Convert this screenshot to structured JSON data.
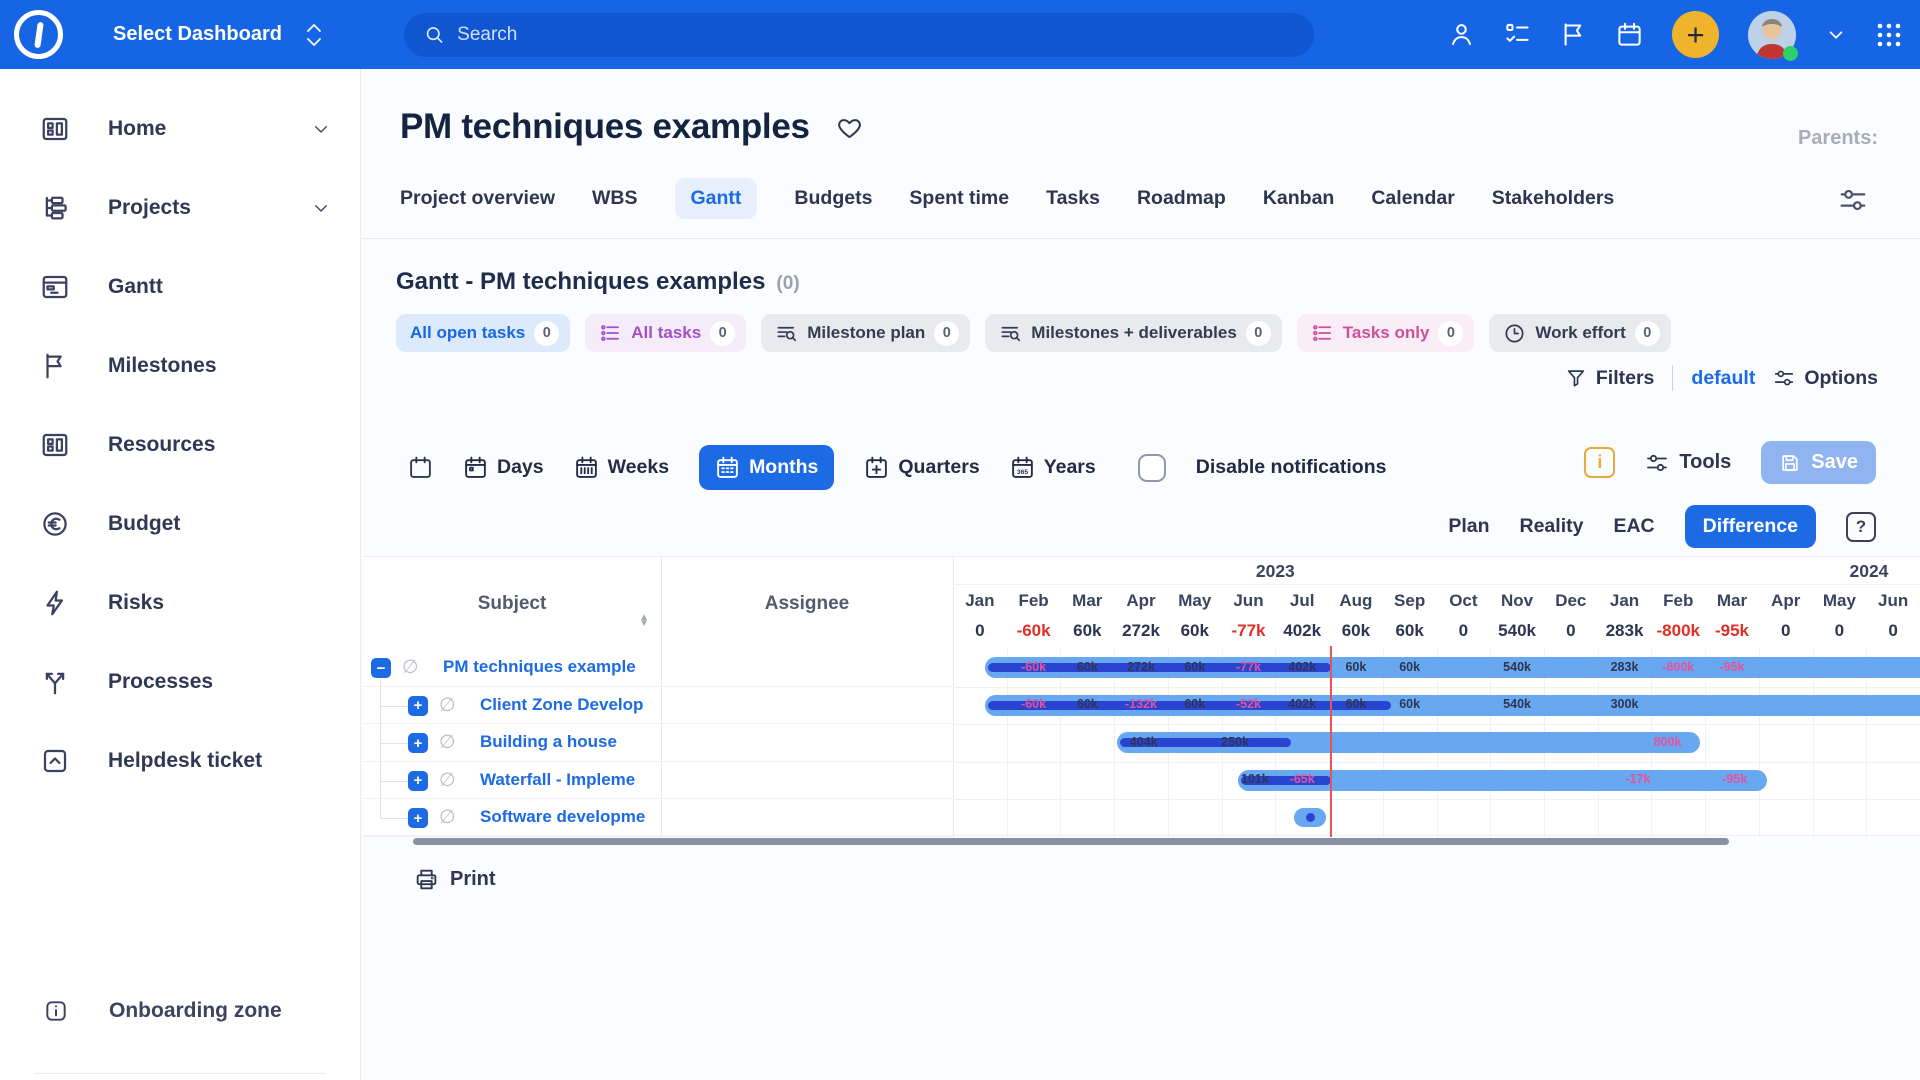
{
  "topbar": {
    "brand": "Select Dashboard",
    "search_placeholder": "Search",
    "icons": [
      "person-icon",
      "checklist-icon",
      "flag-icon",
      "calendar-icon",
      "plus-button",
      "avatar",
      "chevron-down-icon",
      "apps-grid-icon"
    ]
  },
  "sidebar": {
    "items": [
      {
        "label": "Home",
        "icon": "dashboard",
        "chevron": true
      },
      {
        "label": "Projects",
        "icon": "hierarchy",
        "chevron": true
      },
      {
        "label": "Gantt",
        "icon": "gantt"
      },
      {
        "label": "Milestones",
        "icon": "flag"
      },
      {
        "label": "Resources",
        "icon": "dashboard"
      },
      {
        "label": "Budget",
        "icon": "euro"
      },
      {
        "label": "Risks",
        "icon": "bolt"
      },
      {
        "label": "Processes",
        "icon": "branch"
      },
      {
        "label": "Helpdesk ticket",
        "icon": "inbox-up"
      }
    ],
    "onboarding_label": "Onboarding zone"
  },
  "header": {
    "title": "PM techniques examples",
    "parents_label": "Parents:",
    "tabs": [
      {
        "label": "Project overview"
      },
      {
        "label": "WBS"
      },
      {
        "label": "Gantt",
        "active": true
      },
      {
        "label": "Budgets"
      },
      {
        "label": "Spent time"
      },
      {
        "label": "Tasks"
      },
      {
        "label": "Roadmap"
      },
      {
        "label": "Kanban"
      },
      {
        "label": "Calendar"
      },
      {
        "label": "Stakeholders"
      }
    ]
  },
  "gantt": {
    "section_title": "Gantt - PM techniques examples",
    "section_count": "(0)",
    "chips": [
      {
        "label": "All open tasks",
        "count": "0",
        "variant": "blue",
        "icon": "none"
      },
      {
        "label": "All tasks",
        "count": "0",
        "variant": "purple",
        "icon": "list"
      },
      {
        "label": "Milestone plan",
        "count": "0",
        "variant": "gray",
        "icon": "list-search"
      },
      {
        "label": "Milestones + deliverables",
        "count": "0",
        "variant": "gray",
        "icon": "list-search"
      },
      {
        "label": "Tasks only",
        "count": "0",
        "variant": "pink",
        "icon": "list"
      },
      {
        "label": "Work effort",
        "count": "0",
        "variant": "gray",
        "icon": "clock"
      }
    ],
    "filters_label": "Filters",
    "filters_default": "default",
    "options_label": "Options",
    "scale_buttons": [
      {
        "label": "Days",
        "icon": "cal-day"
      },
      {
        "label": "Weeks",
        "icon": "cal-week"
      },
      {
        "label": "Months",
        "icon": "cal-month",
        "active": true
      },
      {
        "label": "Quarters",
        "icon": "cal-plus"
      },
      {
        "label": "Years",
        "icon": "cal-year"
      }
    ],
    "notifications_label": "Disable notifications",
    "tools_label": "Tools",
    "save_label": "Save",
    "modes": [
      {
        "label": "Plan"
      },
      {
        "label": "Reality"
      },
      {
        "label": "EAC"
      },
      {
        "label": "Difference",
        "active": true
      }
    ],
    "help_label": "?",
    "subject_header": "Subject",
    "assignee_header": "Assignee",
    "print_label": "Print"
  },
  "chart_data": {
    "type": "gantt",
    "view_mode": "Difference",
    "time_unit": "months",
    "years": [
      {
        "label": "2023",
        "center_unit": 6.0
      },
      {
        "label": "2024",
        "center_unit": 17.05
      }
    ],
    "months": [
      "Jan",
      "Feb",
      "Mar",
      "Apr",
      "May",
      "Jun",
      "Jul",
      "Aug",
      "Sep",
      "Oct",
      "Nov",
      "Dec",
      "Jan",
      "Feb",
      "Mar",
      "Apr",
      "May",
      "Jun"
    ],
    "monthly_totals": [
      {
        "text": "0"
      },
      {
        "text": "-60k",
        "neg": true
      },
      {
        "text": "60k"
      },
      {
        "text": "272k"
      },
      {
        "text": "60k"
      },
      {
        "text": "-77k",
        "neg": true
      },
      {
        "text": "402k"
      },
      {
        "text": "60k"
      },
      {
        "text": "60k"
      },
      {
        "text": "0"
      },
      {
        "text": "540k"
      },
      {
        "text": "0"
      },
      {
        "text": "283k"
      },
      {
        "text": "-800k",
        "neg": true
      },
      {
        "text": "-95k",
        "neg": true
      },
      {
        "text": "0"
      },
      {
        "text": "0"
      },
      {
        "text": "0"
      }
    ],
    "today_unit": 7.04,
    "tasks": [
      {
        "subject": "PM techniques example",
        "toggle": "collapse",
        "level": 0,
        "bar": {
          "start": 0.6,
          "end": 18.3,
          "progress_end": 7.04
        },
        "labels": [
          {
            "u": 1.5,
            "text": "-60k",
            "neg": true
          },
          {
            "u": 2.5,
            "text": "60k"
          },
          {
            "u": 3.5,
            "text": "272k"
          },
          {
            "u": 4.5,
            "text": "60k"
          },
          {
            "u": 5.5,
            "text": "-77k",
            "neg": true
          },
          {
            "u": 6.5,
            "text": "402k"
          },
          {
            "u": 7.5,
            "text": "60k"
          },
          {
            "u": 8.5,
            "text": "60k"
          },
          {
            "u": 10.5,
            "text": "540k"
          },
          {
            "u": 12.5,
            "text": "283k"
          },
          {
            "u": 13.5,
            "text": "-800k",
            "neg": true
          },
          {
            "u": 14.5,
            "text": "-95k",
            "neg": true
          }
        ]
      },
      {
        "subject": "Client Zone Develop",
        "toggle": "expand",
        "level": 1,
        "bar": {
          "start": 0.6,
          "end": 18.3,
          "progress_end": 8.15
        },
        "labels": [
          {
            "u": 1.5,
            "text": "-60k",
            "neg": true
          },
          {
            "u": 2.5,
            "text": "60k"
          },
          {
            "u": 3.5,
            "text": "-132k",
            "neg": true
          },
          {
            "u": 4.5,
            "text": "60k"
          },
          {
            "u": 5.5,
            "text": "-52k",
            "neg": true
          },
          {
            "u": 6.5,
            "text": "402k"
          },
          {
            "u": 7.5,
            "text": "60k"
          },
          {
            "u": 8.5,
            "text": "60k"
          },
          {
            "u": 10.5,
            "text": "540k"
          },
          {
            "u": 12.5,
            "text": "300k"
          }
        ]
      },
      {
        "subject": "Building a house",
        "toggle": "expand",
        "level": 1,
        "bar": {
          "start": 3.05,
          "end": 13.9,
          "progress_end": 6.3
        },
        "labels": [
          {
            "u": 3.55,
            "text": "404k"
          },
          {
            "u": 5.25,
            "text": "250k"
          },
          {
            "u": 13.3,
            "text": "800k",
            "neg": true
          }
        ]
      },
      {
        "subject": "Waterfall - Impleme",
        "toggle": "expand",
        "level": 1,
        "bar": {
          "start": 5.3,
          "end": 15.15,
          "progress_end": 7.04
        },
        "labels": [
          {
            "u": 5.62,
            "text": "101k"
          },
          {
            "u": 6.5,
            "text": "-65k",
            "neg": true
          },
          {
            "u": 12.75,
            "text": "-17k",
            "neg": true
          },
          {
            "u": 14.55,
            "text": "-95k",
            "neg": true
          }
        ]
      },
      {
        "subject": "Software developme",
        "toggle": "expand",
        "level": 1,
        "bar": {
          "start": 6.35,
          "end": 6.95,
          "milestone_dot": true
        },
        "labels": []
      }
    ]
  }
}
